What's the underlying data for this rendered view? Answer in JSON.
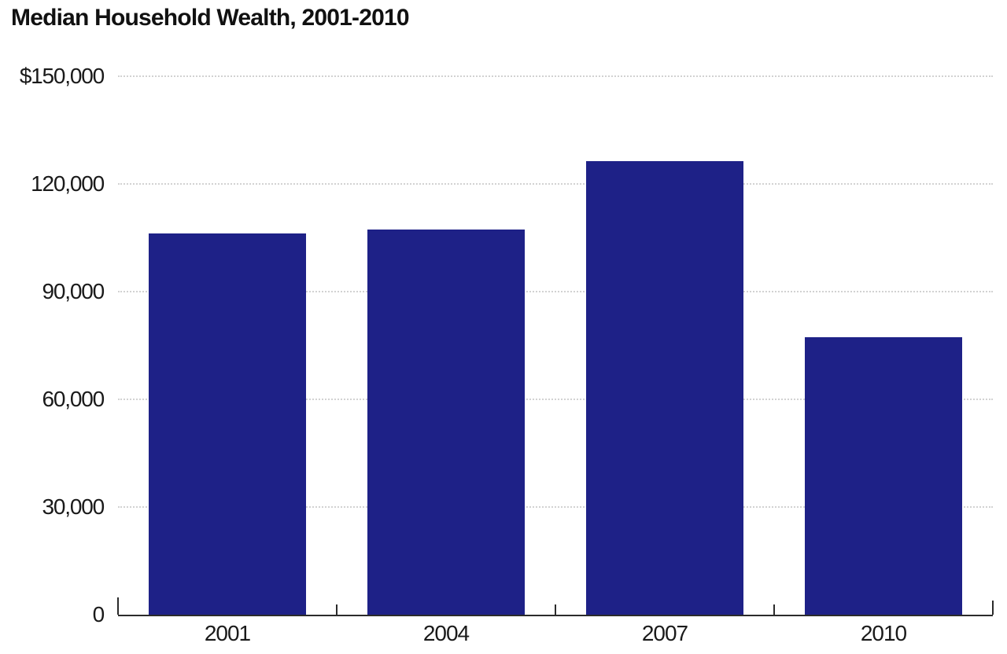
{
  "title": "Median Household Wealth, 2001-2010",
  "colors": {
    "bar": "#1e2187",
    "gridline": "#d2d2d2",
    "axis": "#2b2b2b",
    "text": "#1a1a1a"
  },
  "chart_data": {
    "type": "bar",
    "title": "Median Household Wealth, 2001-2010",
    "categories": [
      "2001",
      "2004",
      "2007",
      "2010"
    ],
    "values": [
      106100,
      107200,
      126400,
      77300
    ],
    "xlabel": "",
    "ylabel": "",
    "ylim": [
      0,
      150000
    ],
    "ytick_interval": 30000,
    "ytick_labels": [
      "0",
      "30,000",
      "60,000",
      "90,000",
      "120,000",
      "$150,000"
    ],
    "grid": "horizontal-dotted",
    "legend": "none",
    "bar_color": "#1e2187",
    "currency_prefix_on_top_label": "$"
  }
}
